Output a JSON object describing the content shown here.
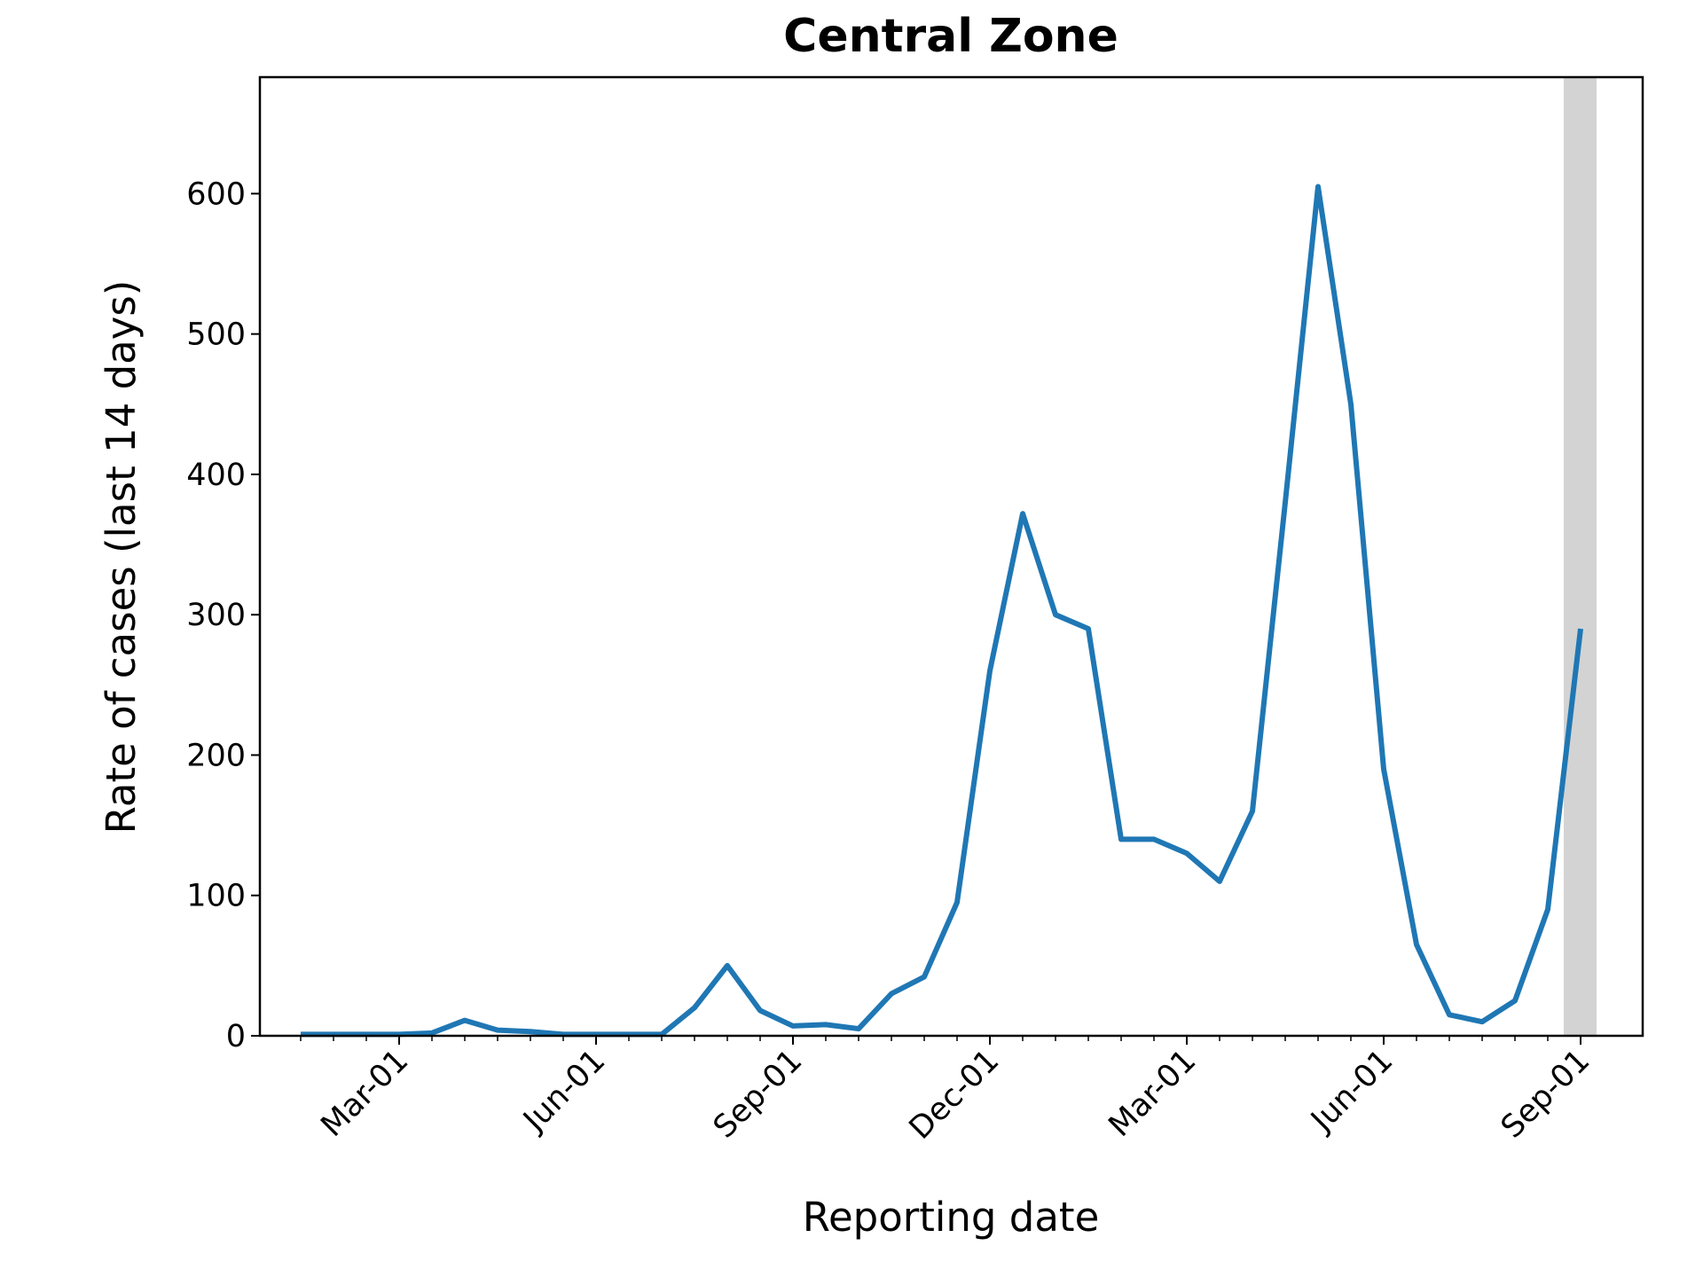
{
  "chart_data": {
    "type": "line",
    "title": "Central Zone",
    "x_label": "Reporting date",
    "y_label": "Rate of cases (last 14 days)",
    "categories": [
      null,
      null,
      null,
      "Mar-01",
      null,
      null,
      null,
      null,
      null,
      "Jun-01",
      null,
      null,
      null,
      null,
      null,
      "Sep-01",
      null,
      null,
      null,
      null,
      null,
      "Dec-01",
      null,
      null,
      null,
      null,
      null,
      "Mar-01",
      null,
      null,
      null,
      null,
      null,
      "Jun-01",
      null,
      null,
      null,
      null,
      null,
      "Sep-01"
    ],
    "series": [
      {
        "name": "Central Zone",
        "color": "#1f77b4",
        "values": [
          1,
          1,
          1,
          1,
          2,
          11,
          4,
          3,
          1,
          1,
          1,
          1,
          20,
          50,
          18,
          7,
          8,
          5,
          30,
          42,
          95,
          260,
          372,
          300,
          290,
          140,
          140,
          130,
          110,
          160,
          380,
          605,
          450,
          190,
          65,
          15,
          10,
          25,
          90,
          290
        ]
      }
    ],
    "ylim": [
      0,
      683
    ],
    "yticks": [
      0,
      100,
      200,
      300,
      400,
      500,
      600
    ],
    "grid": false
  }
}
